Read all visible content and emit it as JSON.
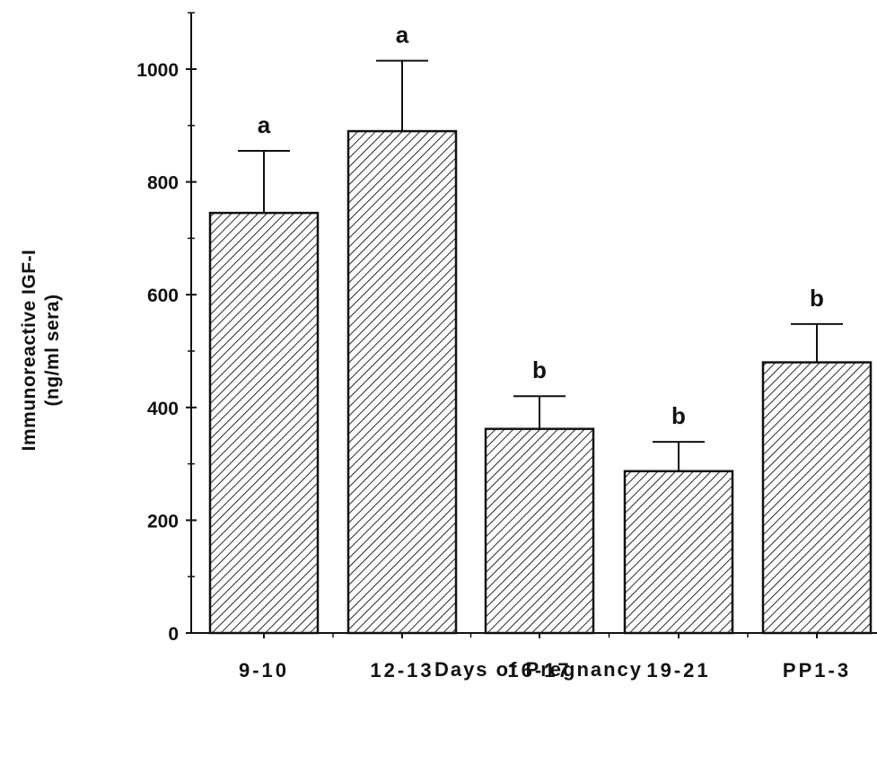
{
  "chart_data": {
    "type": "bar",
    "categories": [
      "9-10",
      "12-13",
      "16-17",
      "19-21",
      "PP1-3"
    ],
    "values": [
      745,
      890,
      362,
      287,
      480
    ],
    "errors": [
      110,
      125,
      58,
      52,
      68
    ],
    "annotations": [
      "a",
      "a",
      "b",
      "b",
      "b"
    ],
    "xlabel": "Days of Pregnancy",
    "ylabel": "Immunoreactive IGF-I",
    "ylabel_unit": "(ng/ml sera)",
    "ylim": [
      0,
      1100
    ],
    "yticks": [
      0,
      200,
      400,
      600,
      800,
      1000
    ],
    "grid": false,
    "bar_fill": "hatched",
    "color": "#111111"
  }
}
